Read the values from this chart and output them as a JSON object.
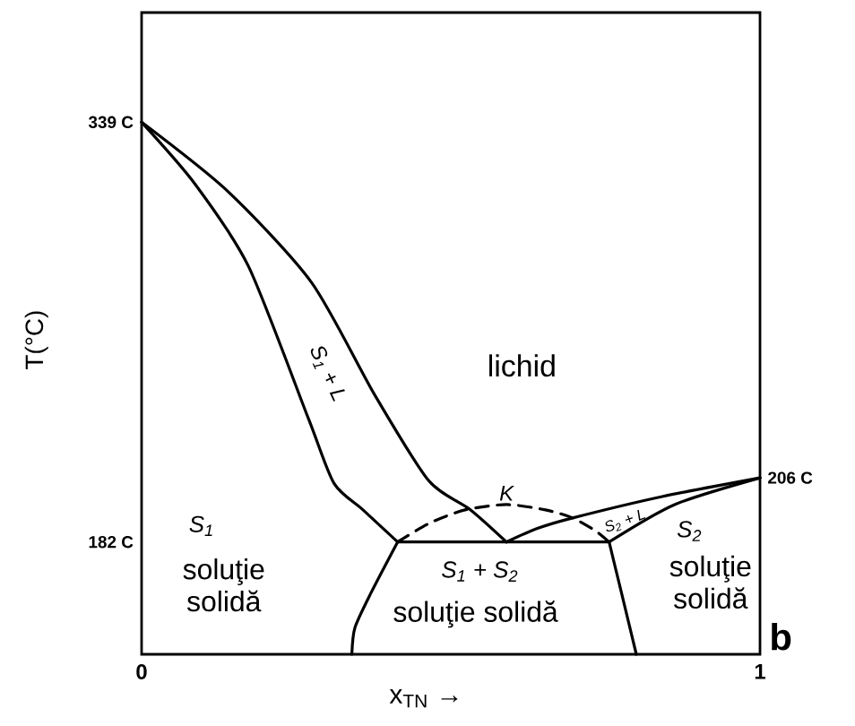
{
  "chart_data": {
    "type": "line",
    "xlabel": "x$_{TN}$ →",
    "ylabel": "T(°C)",
    "xlim": [
      0,
      1
    ],
    "xticks": [
      0,
      1
    ],
    "ylim": [
      140,
      380
    ],
    "yticks": [
      {
        "value": 182,
        "label": "182 C"
      },
      {
        "value": 339,
        "label": "339 C"
      }
    ],
    "series": [
      {
        "color": "#000000",
        "x": [
          0,
          0.14,
          0.275,
          0.377,
          0.464,
          0.532,
          0.59
        ],
        "values": [
          339,
          313,
          279,
          237,
          205,
          194,
          182
        ]
      },
      {
        "color": "#000000",
        "x": [
          0,
          0.086,
          0.173,
          0.27,
          0.311,
          0.358,
          0.414
        ],
        "values": [
          339,
          316,
          285,
          228,
          204,
          194,
          182
        ]
      },
      {
        "color": "#000000",
        "x": [
          1,
          0.842,
          0.697,
          0.639,
          0.59
        ],
        "values": [
          206,
          199,
          191,
          187,
          182
        ]
      },
      {
        "color": "#000000",
        "x": [
          1,
          0.862,
          0.756
        ],
        "values": [
          206,
          196,
          182
        ]
      },
      {
        "color": "#000000",
        "x": [
          0.414,
          0.756
        ],
        "values": [
          182,
          182
        ]
      },
      {
        "color": "#000000",
        "x": [
          0.414,
          0.371,
          0.345,
          0.34
        ],
        "values": [
          182,
          163,
          150,
          140
        ]
      },
      {
        "color": "#000000",
        "x": [
          0.756,
          0.776,
          0.8
        ],
        "values": [
          182,
          163,
          140
        ]
      },
      {
        "color": "#000000",
        "line_style": "dashed",
        "x": [
          0.414,
          0.465,
          0.523,
          0.59,
          0.653,
          0.697,
          0.735,
          0.756
        ],
        "values": [
          182,
          189,
          194,
          196,
          194,
          191,
          186,
          182
        ]
      }
    ],
    "annotations": [
      "lichid",
      "S$_{1}$ + L",
      {
        "text": "K",
        "x": 0.59,
        "y": 196
      },
      "S$_{2}$ + L",
      "S$_{1}$",
      "soluţie solidă",
      "S$_{1}$ + S$_{2}$",
      "soluţie solidă",
      "S$_{2}$",
      "soluţie solidă",
      {
        "text": "206 C",
        "x": 1,
        "y": 206
      },
      "b"
    ]
  }
}
